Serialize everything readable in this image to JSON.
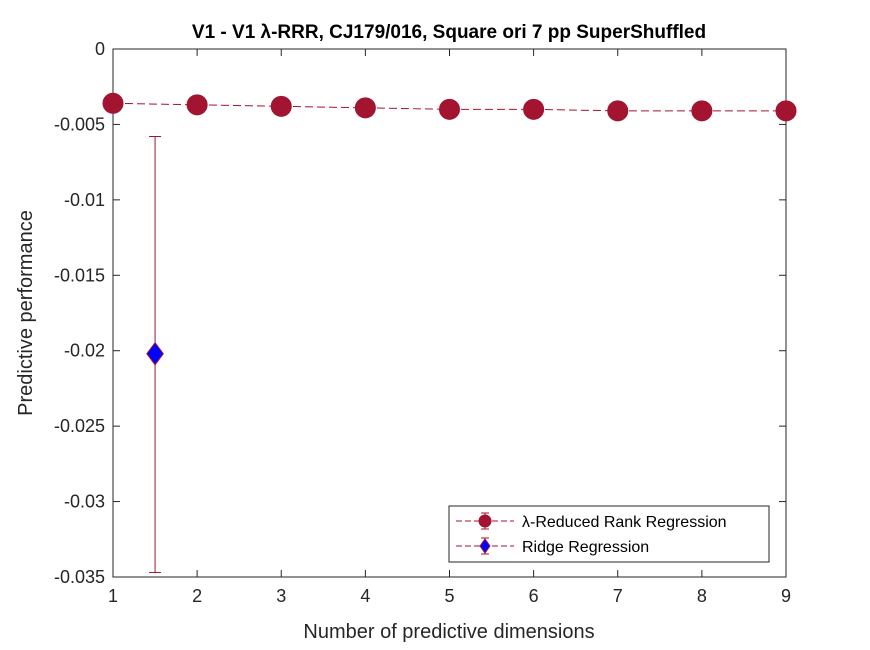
{
  "chart_data": {
    "type": "scatter",
    "title": "V1 - V1 λ-RRR, CJ179/016, Square ori 7 pp SuperShuffled",
    "xlabel": "Number of predictive dimensions",
    "ylabel": "Predictive performance",
    "xlim": [
      1,
      9
    ],
    "ylim": [
      -0.035,
      0
    ],
    "xticks": [
      "1",
      "2",
      "3",
      "4",
      "5",
      "6",
      "7",
      "8",
      "9"
    ],
    "yticks": [
      "0",
      "-0.005",
      "-0.01",
      "-0.015",
      "-0.02",
      "-0.025",
      "-0.03",
      "-0.035"
    ],
    "ytick_values": [
      0,
      -0.005,
      -0.01,
      -0.015,
      -0.02,
      -0.025,
      -0.03,
      -0.035
    ],
    "grid": false,
    "legend_position": "bottom-right",
    "series": [
      {
        "name": "λ-Reduced Rank Regression",
        "marker": "circle",
        "line": "dashed",
        "color": "#a2142f",
        "x": [
          1,
          2,
          3,
          4,
          5,
          6,
          7,
          8,
          9
        ],
        "y": [
          -0.0036,
          -0.0037,
          -0.0038,
          -0.0039,
          -0.004,
          -0.004,
          -0.0041,
          -0.0041,
          -0.0041
        ],
        "err": [
          0.0003,
          0.0003,
          0.0003,
          0.0003,
          0.0004,
          0.0004,
          0.0004,
          0.0004,
          0.0004
        ]
      },
      {
        "name": "Ridge Regression",
        "marker": "diamond",
        "line": "dashed",
        "color": "#0000ff",
        "edge_color": "#a2142f",
        "x": [
          1.5
        ],
        "y": [
          -0.0202
        ],
        "err_low": [
          -0.0347
        ],
        "err_high": [
          -0.0058
        ]
      }
    ]
  }
}
